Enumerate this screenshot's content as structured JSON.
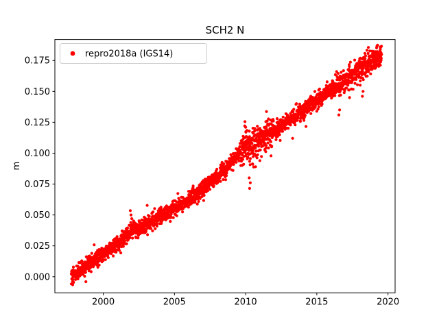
{
  "chart_data": {
    "type": "scatter",
    "title": "SCH2 N",
    "xlabel": "",
    "ylabel": "m",
    "grid": false,
    "legend_position": "upper-left",
    "legend": [
      {
        "label": "repro2018a (IGS14)",
        "color": "#ff0000",
        "marker": "circle"
      }
    ],
    "marker_color": "#ff0000",
    "axes_color": "#000000",
    "background_color": "#ffffff",
    "xlim": [
      1996.6,
      2020.5
    ],
    "ylim": [
      -0.013,
      0.192
    ],
    "xticks": [
      2000,
      2005,
      2010,
      2015,
      2020
    ],
    "xticklabels": [
      "2000",
      "2005",
      "2010",
      "2015",
      "2020"
    ],
    "yticks": [
      0.0,
      0.025,
      0.05,
      0.075,
      0.1,
      0.125,
      0.15,
      0.175
    ],
    "yticklabels": [
      "0.000",
      "0.025",
      "0.050",
      "0.075",
      "0.100",
      "0.125",
      "0.150",
      "0.175"
    ],
    "series": [
      {
        "name": "repro2018a (IGS14)",
        "model": {
          "x_start": 1997.75,
          "x_end": 2019.55,
          "n_points": 2600,
          "y_start": 0.0,
          "slope_m_per_yr": 0.00828,
          "noise_std": 0.0032,
          "seed": 42,
          "bumps": [
            {
              "center": 2006.0,
              "amp": -0.006,
              "width": 1.8
            },
            {
              "center": 2009.9,
              "amp": 0.004,
              "width": 0.45
            },
            {
              "center": 2002.0,
              "amp": 0.003,
              "width": 0.25
            }
          ],
          "high_noise_windows": [
            {
              "from": 2009.6,
              "to": 2012.0,
              "std": 0.006
            },
            {
              "from": 2016.3,
              "to": 2019.6,
              "std": 0.0045
            }
          ]
        },
        "outliers": [
          [
            1998.78,
            -0.004
          ],
          [
            2001.9,
            0.0535
          ],
          [
            2001.95,
            0.05
          ],
          [
            2002.0,
            0.047
          ],
          [
            2008.6,
            0.0785
          ],
          [
            2009.95,
            0.1255
          ],
          [
            2010.0,
            0.121
          ],
          [
            2010.02,
            0.117
          ],
          [
            2010.05,
            0.1135
          ],
          [
            2010.25,
            0.08
          ],
          [
            2010.28,
            0.0715
          ],
          [
            2010.33,
            0.076
          ],
          [
            2010.7,
            0.089
          ],
          [
            2011.0,
            0.094
          ],
          [
            2011.42,
            0.1255
          ],
          [
            2011.45,
            0.1215
          ],
          [
            2011.5,
            0.118
          ],
          [
            2012.55,
            0.1185
          ],
          [
            2013.3,
            0.112
          ],
          [
            2016.55,
            0.131
          ],
          [
            2016.6,
            0.135
          ],
          [
            2018.2,
            0.146
          ],
          [
            2018.25,
            0.15
          ],
          [
            2019.42,
            0.1735
          ],
          [
            2019.47,
            0.174
          ],
          [
            2019.5,
            0.176
          ]
        ]
      }
    ]
  }
}
